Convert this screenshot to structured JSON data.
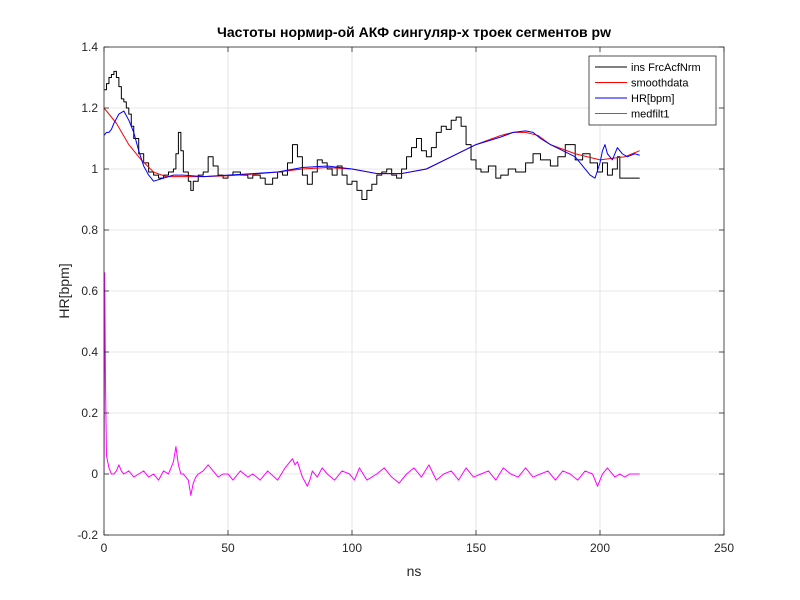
{
  "chart_data": {
    "type": "line",
    "title": "Частоты нормир-ой АКФ сингуляр-х троек сегментов pw",
    "xlabel": "ns",
    "ylabel": "HR[bpm]",
    "xlim": [
      0,
      250
    ],
    "ylim": [
      -0.2,
      1.4
    ],
    "xticks": [
      0,
      50,
      100,
      150,
      200,
      250
    ],
    "yticks": [
      -0.2,
      0,
      0.2,
      0.4,
      0.6,
      0.8,
      1,
      1.2,
      1.4
    ],
    "xtick_labels": [
      "0",
      "50",
      "100",
      "150",
      "200",
      "250"
    ],
    "ytick_labels": [
      "-0.2",
      "0",
      "0.2",
      "0.4",
      "0.6",
      "0.8",
      "1",
      "1.2",
      "1.4"
    ],
    "grid": true,
    "legend_position": "top-right",
    "series": [
      {
        "name": "ins FrcAcfNrm",
        "color": "#000000",
        "style": "step",
        "x": [
          0,
          1,
          2,
          3,
          4,
          5,
          6,
          7,
          8,
          9,
          10,
          11,
          12,
          14,
          16,
          18,
          20,
          22,
          24,
          26,
          28,
          29,
          30,
          31,
          32,
          34,
          35,
          36,
          38,
          40,
          42,
          44,
          46,
          48,
          50,
          52,
          55,
          58,
          60,
          63,
          65,
          68,
          70,
          72,
          74,
          76,
          78,
          80,
          82,
          84,
          86,
          88,
          90,
          92,
          94,
          96,
          98,
          100,
          102,
          104,
          106,
          108,
          110,
          112,
          114,
          116,
          118,
          120,
          122,
          124,
          126,
          128,
          130,
          132,
          134,
          136,
          138,
          140,
          142,
          144,
          146,
          148,
          150,
          152,
          155,
          158,
          160,
          163,
          166,
          170,
          173,
          176,
          180,
          183,
          186,
          190,
          193,
          196,
          199,
          201,
          203,
          205,
          207,
          208,
          210,
          212,
          214,
          216
        ],
        "y": [
          1.26,
          1.28,
          1.3,
          1.31,
          1.32,
          1.3,
          1.27,
          1.23,
          1.22,
          1.2,
          1.18,
          1.14,
          1.1,
          1.05,
          1.02,
          0.99,
          0.98,
          0.97,
          0.98,
          0.99,
          1.0,
          1.05,
          1.12,
          1.06,
          0.99,
          0.96,
          0.93,
          0.96,
          0.98,
          0.99,
          1.04,
          1.01,
          0.98,
          0.97,
          0.98,
          0.99,
          0.98,
          0.97,
          0.98,
          0.97,
          0.95,
          0.97,
          0.99,
          0.98,
          1.02,
          1.08,
          1.04,
          0.98,
          0.95,
          0.99,
          1.03,
          1.02,
          1.0,
          0.98,
          1.01,
          0.98,
          0.95,
          0.96,
          0.93,
          0.9,
          0.93,
          0.95,
          0.98,
          0.99,
          1.0,
          0.98,
          0.97,
          1.0,
          1.04,
          1.07,
          1.1,
          1.06,
          1.04,
          1.07,
          1.12,
          1.14,
          1.13,
          1.16,
          1.17,
          1.14,
          1.08,
          1.03,
          1.0,
          0.99,
          1.01,
          0.97,
          0.98,
          1.0,
          0.99,
          1.02,
          1.05,
          1.03,
          1.01,
          1.04,
          1.08,
          1.03,
          1.05,
          1.02,
          0.99,
          1.02,
          0.98,
          1.0,
          1.04,
          0.97,
          0.97,
          0.97,
          0.97,
          0.97
        ]
      },
      {
        "name": "smoothdata",
        "color": "#ff0000",
        "style": "line",
        "x": [
          0,
          5,
          10,
          15,
          20,
          25,
          30,
          35,
          40,
          50,
          60,
          70,
          80,
          90,
          100,
          110,
          120,
          130,
          140,
          150,
          160,
          165,
          170,
          175,
          180,
          190,
          200,
          210,
          216
        ],
        "y": [
          1.2,
          1.15,
          1.08,
          1.03,
          0.99,
          0.975,
          0.975,
          0.975,
          0.975,
          0.978,
          0.983,
          0.99,
          1.0,
          1.005,
          1.0,
          0.985,
          0.985,
          1.0,
          1.04,
          1.08,
          1.11,
          1.12,
          1.12,
          1.11,
          1.08,
          1.05,
          1.03,
          1.04,
          1.06
        ]
      },
      {
        "name": "HR[bpm]",
        "color": "#0000ff",
        "style": "line",
        "x": [
          0,
          1,
          2,
          3,
          4,
          6,
          8,
          10,
          12,
          14,
          16,
          18,
          20,
          24,
          28,
          32,
          40,
          50,
          60,
          70,
          80,
          90,
          100,
          110,
          120,
          130,
          140,
          150,
          160,
          165,
          170,
          173,
          176,
          180,
          185,
          190,
          193,
          196,
          198,
          200,
          201,
          202,
          203,
          205,
          207,
          209,
          211,
          214,
          216
        ],
        "y": [
          1.11,
          1.12,
          1.12,
          1.13,
          1.15,
          1.18,
          1.19,
          1.16,
          1.12,
          1.06,
          1.01,
          0.98,
          0.96,
          0.97,
          0.98,
          0.98,
          0.975,
          0.98,
          0.985,
          0.99,
          1.005,
          1.01,
          1.0,
          0.985,
          0.985,
          1.0,
          1.04,
          1.08,
          1.105,
          1.12,
          1.125,
          1.12,
          1.1,
          1.08,
          1.06,
          1.04,
          1.01,
          0.98,
          0.97,
          1.02,
          1.06,
          1.08,
          1.05,
          1.03,
          1.07,
          1.05,
          1.04,
          1.05,
          1.045
        ]
      },
      {
        "name": "medfilt1",
        "color": "#ff00ff",
        "style": "line",
        "x": [
          0,
          0.3,
          0.6,
          1,
          2,
          3,
          4,
          5,
          6,
          7,
          8,
          10,
          12,
          14,
          16,
          18,
          20,
          22,
          24,
          26,
          27,
          28,
          29,
          30,
          31,
          32,
          34,
          35,
          36,
          37,
          38,
          40,
          42,
          44,
          46,
          48,
          50,
          52,
          55,
          58,
          60,
          63,
          66,
          70,
          73,
          76,
          77,
          78,
          80,
          82,
          83,
          84,
          86,
          88,
          90,
          93,
          96,
          99,
          101,
          103,
          106,
          108,
          110,
          113,
          116,
          119,
          122,
          125,
          128,
          131,
          134,
          137,
          140,
          143,
          146,
          149,
          152,
          155,
          158,
          161,
          164,
          167,
          170,
          173,
          176,
          179,
          182,
          185,
          188,
          191,
          194,
          197,
          199,
          201,
          203,
          206,
          208,
          210,
          212,
          214,
          216
        ],
        "y": [
          0.0,
          0.66,
          0.3,
          0.06,
          0.02,
          0.0,
          0.0,
          0.01,
          0.03,
          0.01,
          0.0,
          0.01,
          -0.01,
          0.0,
          0.01,
          -0.01,
          0.0,
          -0.02,
          0.01,
          0.0,
          0.02,
          0.04,
          0.09,
          0.03,
          0.0,
          0.0,
          -0.02,
          -0.07,
          -0.03,
          -0.01,
          0.0,
          0.01,
          0.03,
          0.01,
          -0.01,
          0.0,
          0.0,
          -0.02,
          0.01,
          -0.01,
          0.0,
          -0.02,
          0.01,
          -0.02,
          0.02,
          0.05,
          0.03,
          0.04,
          -0.01,
          -0.04,
          -0.02,
          0.01,
          -0.01,
          0.02,
          0.0,
          -0.02,
          0.01,
          0.0,
          -0.02,
          0.02,
          -0.02,
          -0.01,
          0.0,
          0.02,
          -0.01,
          -0.03,
          0.0,
          0.02,
          -0.01,
          0.03,
          -0.02,
          0.0,
          0.01,
          -0.02,
          0.02,
          -0.01,
          0.0,
          0.01,
          -0.02,
          0.02,
          0.0,
          -0.01,
          0.02,
          -0.01,
          0.0,
          0.01,
          -0.02,
          0.01,
          0.0,
          -0.02,
          0.01,
          0.0,
          -0.04,
          0.0,
          0.02,
          -0.01,
          0.0,
          -0.01,
          0.0,
          0.0,
          0.0
        ]
      }
    ]
  }
}
